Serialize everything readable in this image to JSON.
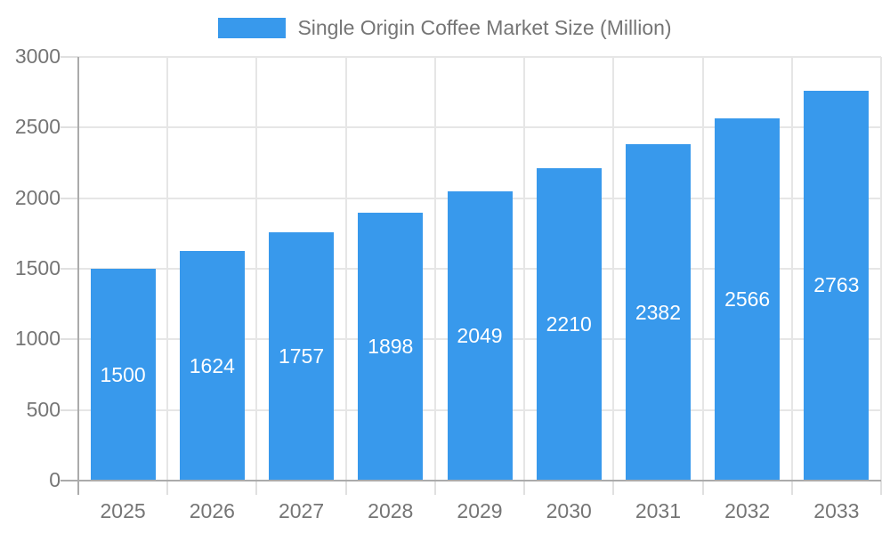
{
  "chart_data": {
    "type": "bar",
    "legend": {
      "label": "Single Origin Coffee Market Size (Million)",
      "position": "top-center"
    },
    "categories": [
      "2025",
      "2026",
      "2027",
      "2028",
      "2029",
      "2030",
      "2031",
      "2032",
      "2033"
    ],
    "series": [
      {
        "name": "Single Origin Coffee Market Size (Million)",
        "values": [
          1500,
          1624,
          1757,
          1898,
          2049,
          2210,
          2382,
          2566,
          2763
        ]
      }
    ],
    "bar_value_labels": [
      "1500",
      "1624",
      "1757",
      "1898",
      "2049",
      "2210",
      "2382",
      "2566",
      "2763"
    ],
    "xlabel": "",
    "ylabel": "",
    "ylim": [
      0,
      3000
    ],
    "yticks": [
      0,
      500,
      1000,
      1500,
      2000,
      2500,
      3000
    ],
    "ytick_labels": [
      "0",
      "500",
      "1000",
      "1500",
      "2000",
      "2500",
      "3000"
    ],
    "grid": true,
    "legend_clickable": true,
    "colors": {
      "bar": "#3899EC",
      "grid": "#e6e6e6",
      "tick": "#e0e0e0",
      "axis": "#ababab",
      "text": "#757575",
      "bar_label": "#ffffff",
      "background": "#ffffff"
    }
  }
}
